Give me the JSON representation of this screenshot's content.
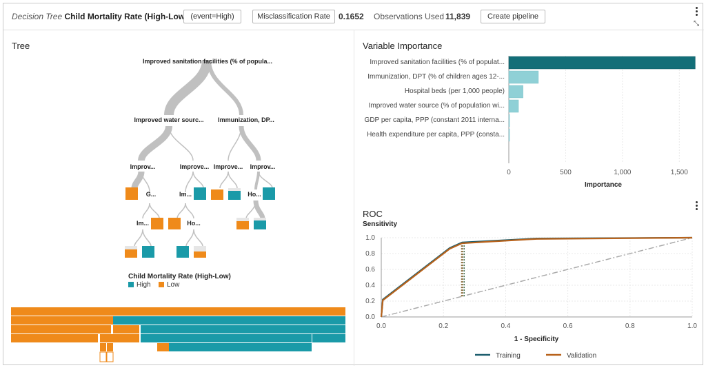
{
  "header": {
    "model_type": "Decision Tree",
    "model_name": "Child Mortality Rate (High-Low)",
    "event_button": "(event=High)",
    "metric_button": "Misclassification Rate",
    "metric_value": "0.1652",
    "obs_label": "Observations Used",
    "obs_value": "11,839",
    "pipeline_button": "Create pipeline"
  },
  "tree": {
    "title": "Tree",
    "root_label": "Improved sanitation facilities (% of popula...",
    "level2": [
      "Improved water sourc...",
      "Immunization, DP..."
    ],
    "level3": [
      "Improv...",
      "Improve...",
      "Improve...",
      "Improv..."
    ],
    "level4": [
      "G...",
      "Im...",
      "Ho..."
    ],
    "level5": [
      "Im...",
      "Ho..."
    ],
    "legend_title": "Child Mortality Rate (High-Low)",
    "legend_items": [
      {
        "label": "High",
        "color": "#1a9aa8"
      },
      {
        "label": "Low",
        "color": "#ef8a1a"
      }
    ]
  },
  "variable_importance": {
    "title": "Variable Importance",
    "xlabel": "Importance",
    "ticks": [
      "0",
      "500",
      "1,000",
      "1,500"
    ],
    "xlim": [
      0,
      1650
    ],
    "bars": [
      {
        "label": "Improved sanitation facilities (% of populat...",
        "value": 1640
      },
      {
        "label": "Immunization, DPT (% of children ages 12-...",
        "value": 260
      },
      {
        "label": "Hospital beds (per 1,000 people)",
        "value": 125
      },
      {
        "label": "Improved water source (% of population wi...",
        "value": 85
      },
      {
        "label": "GDP per capita, PPP (constant 2011 interna...",
        "value": 5
      },
      {
        "label": "Health expenditure per capita, PPP (consta...",
        "value": 2
      }
    ]
  },
  "roc": {
    "title": "ROC",
    "ylabel": "Sensitivity",
    "xlabel": "1 - Specificity",
    "x_ticks": [
      "0.0",
      "0.2",
      "0.4",
      "0.6",
      "0.8",
      "1.0"
    ],
    "y_ticks": [
      "0.0",
      "0.2",
      "0.4",
      "0.6",
      "0.8",
      "1.0"
    ],
    "legend": [
      {
        "label": "Training",
        "color": "#1d5e6e"
      },
      {
        "label": "Validation",
        "color": "#b8621b"
      }
    ]
  },
  "chart_data": [
    {
      "type": "bar",
      "title": "Variable Importance",
      "xlabel": "Importance",
      "categories": [
        "Improved sanitation facilities (% of populat...",
        "Immunization, DPT (% of children ages 12-...",
        "Hospital beds (per 1,000 people)",
        "Improved water source (% of population wi...",
        "GDP per capita, PPP (constant 2011 interna...",
        "Health expenditure per capita, PPP (consta..."
      ],
      "values": [
        1640,
        260,
        125,
        85,
        5,
        2
      ],
      "xlim": [
        0,
        1650
      ]
    },
    {
      "type": "line",
      "title": "ROC",
      "xlabel": "1 - Specificity",
      "ylabel": "Sensitivity",
      "xlim": [
        0,
        1
      ],
      "ylim": [
        0,
        1
      ],
      "series": [
        {
          "name": "Training",
          "x": [
            0,
            0.005,
            0.22,
            0.26,
            0.5,
            1.0
          ],
          "y": [
            0,
            0.22,
            0.87,
            0.94,
            0.99,
            1.0
          ]
        },
        {
          "name": "Validation",
          "x": [
            0,
            0.005,
            0.22,
            0.26,
            0.5,
            1.0
          ],
          "y": [
            0,
            0.21,
            0.86,
            0.93,
            0.985,
            1.0
          ]
        }
      ]
    }
  ]
}
